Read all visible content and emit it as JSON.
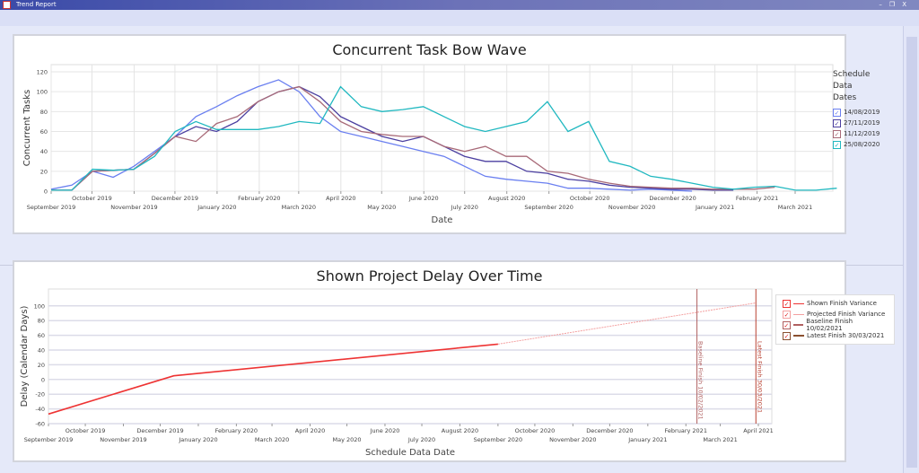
{
  "window": {
    "title": "Trend Report",
    "controls": [
      "–",
      "❐",
      "X"
    ]
  },
  "chart_data": [
    {
      "type": "line",
      "title": "Concurrent Task Bow Wave",
      "xlabel": "Date",
      "ylabel": "Concurrent Tasks",
      "ylim": [
        0,
        120
      ],
      "yticks": [
        "0",
        "20",
        "40",
        "60",
        "80",
        "100",
        "120"
      ],
      "xticks": [
        "September 2019",
        "October 2019",
        "November 2019",
        "December 2019",
        "January 2020",
        "February 2020",
        "March 2020",
        "April 2020",
        "May 2020",
        "June 2020",
        "July 2020",
        "August 2020",
        "September 2020",
        "October 2020",
        "November 2020",
        "December 2020",
        "January 2021",
        "February 2021",
        "March 2021"
      ],
      "legend_title": [
        "Schedule",
        "Data",
        "Dates"
      ],
      "legend_position": "right",
      "x_start": "2019-09-01",
      "series": [
        {
          "name": "14/08/2019",
          "color": "#6a7ff0",
          "values": [
            2,
            6,
            20,
            14,
            25,
            40,
            55,
            75,
            85,
            96,
            105,
            112,
            100,
            75,
            60,
            55,
            50,
            45,
            40,
            35,
            25,
            15,
            12,
            10,
            8,
            3,
            3,
            2,
            1,
            2,
            1,
            0
          ]
        },
        {
          "name": "27/11/2019",
          "color": "#4b3fa0",
          "values": [
            1,
            1,
            20,
            21,
            22,
            38,
            55,
            65,
            60,
            70,
            90,
            100,
            105,
            95,
            75,
            65,
            55,
            50,
            55,
            45,
            35,
            30,
            30,
            20,
            18,
            12,
            10,
            6,
            4,
            3,
            2,
            2,
            1,
            1
          ]
        },
        {
          "name": "11/12/2019",
          "color": "#a86a78",
          "values": [
            1,
            1,
            20,
            21,
            22,
            38,
            55,
            50,
            68,
            75,
            90,
            100,
            105,
            90,
            70,
            60,
            57,
            55,
            55,
            45,
            40,
            45,
            35,
            35,
            20,
            18,
            12,
            8,
            5,
            4,
            3,
            3,
            2,
            2,
            2,
            4
          ]
        },
        {
          "name": "25/08/2020",
          "color": "#20b8c0",
          "values": [
            1,
            1,
            22,
            21,
            22,
            35,
            60,
            70,
            62,
            62,
            62,
            65,
            70,
            68,
            105,
            85,
            80,
            82,
            85,
            75,
            65,
            60,
            65,
            70,
            90,
            60,
            70,
            30,
            25,
            15,
            12,
            8,
            4,
            2,
            4,
            5,
            1,
            1,
            3
          ]
        }
      ]
    },
    {
      "type": "line",
      "title": "Shown Project Delay Over Time",
      "xlabel": "Schedule Data Date",
      "ylabel": "Delay (Calendar Days)",
      "ylim": [
        -60,
        110
      ],
      "yticks": [
        "-60",
        "-40",
        "-20",
        "0",
        "20",
        "40",
        "60",
        "80",
        "100"
      ],
      "xticks": [
        "September 2019",
        "October 2019",
        "November 2019",
        "December 2019",
        "January 2020",
        "February 2020",
        "March 2020",
        "April 2020",
        "May 2020",
        "June 2020",
        "July 2020",
        "August 2020",
        "September 2020",
        "October 2020",
        "November 2020",
        "December 2020",
        "January 2021",
        "February 2021",
        "March 2021",
        "April 2021"
      ],
      "series": [
        {
          "name": "Shown Finish Variance",
          "color": "#ee3333",
          "points": [
            [
              "2019-09-01",
              -47
            ],
            [
              "2019-12-12",
              5
            ],
            [
              "2020-09-01",
              48
            ]
          ]
        },
        {
          "name": "Projected Finish Variance",
          "color": "#f4a0a0",
          "points": [
            [
              "2020-09-01",
              48
            ],
            [
              "2021-03-30",
              104
            ]
          ]
        }
      ],
      "markers": [
        {
          "name": "Baseline Finish 10/02/2021",
          "date": "2021-02-10",
          "color": "#b06060",
          "label": "Baseline Finish 10/02/2021"
        },
        {
          "name": "Latest Finish 30/03/2021",
          "date": "2021-03-30",
          "color": "#b84030",
          "label": "Latest Finish 30/03/2021"
        }
      ],
      "legend": [
        "Shown Finish Variance",
        "Projected Finish Variance",
        "Baseline Finish 10/02/2021",
        "Latest Finish 30/03/2021"
      ],
      "legend_position": "right"
    }
  ]
}
